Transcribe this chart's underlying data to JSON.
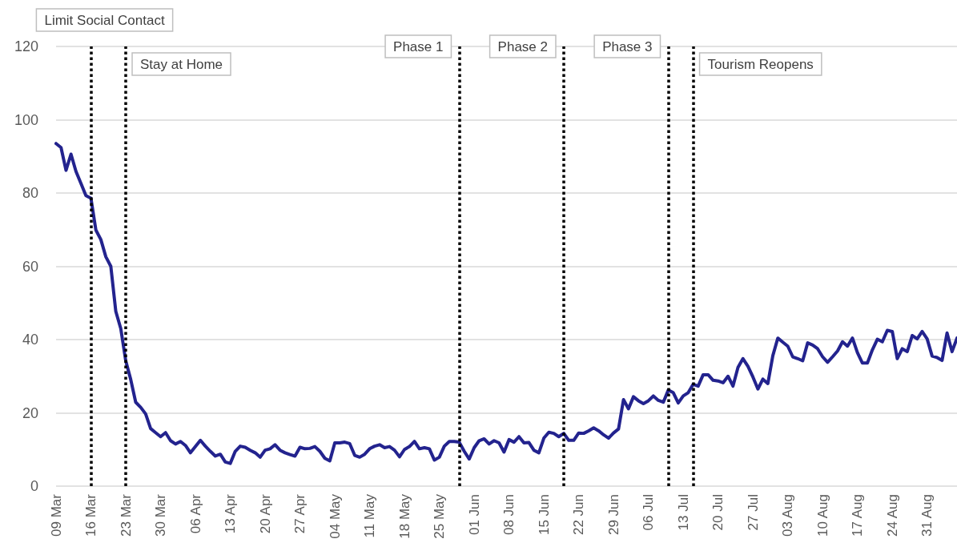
{
  "chart_data": {
    "type": "line",
    "x": [
      "--03-09",
      "--03-10",
      "--03-11",
      "--03-12",
      "--03-13",
      "--03-14",
      "--03-15",
      "--03-16",
      "--03-17",
      "--03-18",
      "--03-19",
      "--03-20",
      "--03-21",
      "--03-22",
      "--03-23",
      "--03-24",
      "--03-25",
      "--03-26",
      "--03-27",
      "--03-28",
      "--03-29",
      "--03-30",
      "--03-31",
      "--04-01",
      "--04-02",
      "--04-03",
      "--04-04",
      "--04-05",
      "--04-06",
      "--04-07",
      "--04-08",
      "--04-09",
      "--04-10",
      "--04-11",
      "--04-12",
      "--04-13",
      "--04-14",
      "--04-15",
      "--04-16",
      "--04-17",
      "--04-18",
      "--04-19",
      "--04-20",
      "--04-21",
      "--04-22",
      "--04-23",
      "--04-24",
      "--04-25",
      "--04-26",
      "--04-27",
      "--04-28",
      "--04-29",
      "--04-30",
      "--05-01",
      "--05-02",
      "--05-03",
      "--05-04",
      "--05-05",
      "--05-06",
      "--05-07",
      "--05-08",
      "--05-09",
      "--05-10",
      "--05-11",
      "--05-12",
      "--05-13",
      "--05-14",
      "--05-15",
      "--05-16",
      "--05-17",
      "--05-18",
      "--05-19",
      "--05-20",
      "--05-21",
      "--05-22",
      "--05-23",
      "--05-24",
      "--05-25",
      "--05-26",
      "--05-27",
      "--05-28",
      "--05-29",
      "--05-30",
      "--05-31",
      "--06-01",
      "--06-02",
      "--06-03",
      "--06-04",
      "--06-05",
      "--06-06",
      "--06-07",
      "--06-08",
      "--06-09",
      "--06-10",
      "--06-11",
      "--06-12",
      "--06-13",
      "--06-14",
      "--06-15",
      "--06-16",
      "--06-17",
      "--06-18",
      "--06-19",
      "--06-20",
      "--06-21",
      "--06-22",
      "--06-23",
      "--06-24",
      "--06-25",
      "--06-26",
      "--06-27",
      "--06-28",
      "--06-29",
      "--06-30",
      "--07-01",
      "--07-02",
      "--07-03",
      "--07-04",
      "--07-05",
      "--07-06",
      "--07-07",
      "--07-08",
      "--07-09",
      "--07-10",
      "--07-11",
      "--07-12",
      "--07-13",
      "--07-14",
      "--07-15",
      "--07-16",
      "--07-17",
      "--07-18",
      "--07-19",
      "--07-20",
      "--07-21",
      "--07-22",
      "--07-23",
      "--07-24",
      "--07-25",
      "--07-26",
      "--07-27",
      "--07-28",
      "--07-29",
      "--07-30",
      "--07-31",
      "--08-01",
      "--08-02",
      "--08-03",
      "--08-04",
      "--08-05",
      "--08-06",
      "--08-07",
      "--08-08",
      "--08-09",
      "--08-10",
      "--08-11",
      "--08-12",
      "--08-13",
      "--08-14",
      "--08-15",
      "--08-16",
      "--08-17",
      "--08-18",
      "--08-19",
      "--08-20",
      "--08-21",
      "--08-22",
      "--08-23",
      "--08-24",
      "--08-25",
      "--08-26",
      "--08-27",
      "--08-28",
      "--08-29",
      "--08-30",
      "--08-31",
      "--09-01",
      "--09-02",
      "--09-03",
      "--09-04",
      "--09-05",
      "--09-06"
    ],
    "series": [
      {
        "color": "#23238e",
        "values": [
          93.5,
          92.4,
          86.2,
          90.6,
          85.9,
          82.6,
          79.3,
          78.6,
          69.9,
          67.3,
          62.6,
          60,
          47.7,
          43,
          34.2,
          29.1,
          22.9,
          21.5,
          19.7,
          15.7,
          14.6,
          13.5,
          14.6,
          12.4,
          11.5,
          12.2,
          11.1,
          9.1,
          10.8,
          12.5,
          10.9,
          9.5,
          8.2,
          8.7,
          6.6,
          6.2,
          9.5,
          10.9,
          10.6,
          9.8,
          9.1,
          7.9,
          9.8,
          10.2,
          11.3,
          9.8,
          9.1,
          8.6,
          8.2,
          10.6,
          10.2,
          10.3,
          10.8,
          9.5,
          7.6,
          6.9,
          11.8,
          11.8,
          12,
          11.6,
          8.4,
          7.9,
          8.7,
          10.2,
          10.9,
          11.3,
          10.5,
          10.8,
          9.8,
          8,
          10,
          10.8,
          12.2,
          10.2,
          10.5,
          10.2,
          7.1,
          7.9,
          10.9,
          12.2,
          12.2,
          12,
          9.5,
          7.4,
          10.5,
          12.4,
          12.9,
          11.5,
          12.4,
          11.8,
          9.3,
          12.7,
          12,
          13.5,
          11.8,
          11.9,
          9.8,
          9.1,
          13.1,
          14.7,
          14.4,
          13.5,
          14.4,
          12.5,
          12.5,
          14.5,
          14.4,
          15.1,
          15.9,
          15.1,
          14,
          13.1,
          14.5,
          15.6,
          23.6,
          21.1,
          24.4,
          23.3,
          22.5,
          23.3,
          24.6,
          23.4,
          22.9,
          26.2,
          25.5,
          22.7,
          24.6,
          25.5,
          27.8,
          27.3,
          30.4,
          30.4,
          28.9,
          28.7,
          28.2,
          30,
          27.3,
          32.4,
          34.8,
          32.7,
          29.8,
          26.5,
          29.2,
          28,
          35.6,
          40.4,
          39.3,
          38.2,
          35.3,
          34.8,
          34.2,
          39.1,
          38.5,
          37.5,
          35.3,
          33.8,
          35.3,
          36.9,
          39.4,
          38.2,
          40.4,
          36.4,
          33.6,
          33.6,
          37.2,
          40.1,
          39.4,
          42.5,
          42.2,
          34.8,
          37.5,
          36.7,
          41.1,
          40.2,
          42.2,
          40.2,
          35.5,
          35.1,
          34.3,
          41.8,
          36.7,
          40.4
        ]
      }
    ],
    "xlim": [
      "--03-09",
      "--09-06"
    ],
    "xticks": [
      {
        "value": "--03-09",
        "label": "09 Mar"
      },
      {
        "value": "--03-16",
        "label": "16 Mar"
      },
      {
        "value": "--03-23",
        "label": "23 Mar"
      },
      {
        "value": "--03-30",
        "label": "30 Mar"
      },
      {
        "value": "--04-06",
        "label": "06 Apr"
      },
      {
        "value": "--04-13",
        "label": "13 Apr"
      },
      {
        "value": "--04-20",
        "label": "20 Apr"
      },
      {
        "value": "--04-27",
        "label": "27 Apr"
      },
      {
        "value": "--05-04",
        "label": "04 May"
      },
      {
        "value": "--05-11",
        "label": "11 May"
      },
      {
        "value": "--05-18",
        "label": "18 May"
      },
      {
        "value": "--05-25",
        "label": "25 May"
      },
      {
        "value": "--06-01",
        "label": "01 Jun"
      },
      {
        "value": "--06-08",
        "label": "08 Jun"
      },
      {
        "value": "--06-15",
        "label": "15 Jun"
      },
      {
        "value": "--06-22",
        "label": "22 Jun"
      },
      {
        "value": "--06-29",
        "label": "29 Jun"
      },
      {
        "value": "--07-06",
        "label": "06 Jul"
      },
      {
        "value": "--07-13",
        "label": "13 Jul"
      },
      {
        "value": "--07-20",
        "label": "20 Jul"
      },
      {
        "value": "--07-27",
        "label": "27 Jul"
      },
      {
        "value": "--08-03",
        "label": "03 Aug"
      },
      {
        "value": "--08-10",
        "label": "10 Aug"
      },
      {
        "value": "--08-17",
        "label": "17 Aug"
      },
      {
        "value": "--08-24",
        "label": "24 Aug"
      },
      {
        "value": "--08-31",
        "label": "31 Aug"
      }
    ],
    "ylim": [
      0,
      120
    ],
    "yticks": [
      0,
      20,
      40,
      60,
      80,
      100,
      120
    ],
    "ref_lines": [
      {
        "axis": "x",
        "value": "--03-16",
        "label": "Limit Social Contact",
        "line_style": "dotted",
        "color": "#000000"
      },
      {
        "axis": "x",
        "value": "--03-23",
        "label": "Stay at Home",
        "line_style": "dotted",
        "color": "#000000"
      },
      {
        "axis": "x",
        "value": "--05-29",
        "label": "Phase 1",
        "line_style": "dotted",
        "color": "#000000"
      },
      {
        "axis": "x",
        "value": "--06-19",
        "label": "Phase 2",
        "line_style": "dotted",
        "color": "#000000"
      },
      {
        "axis": "x",
        "value": "--07-10",
        "label": "Phase 3",
        "line_style": "dotted",
        "color": "#000000"
      },
      {
        "axis": "x",
        "value": "--07-15",
        "label": "Tourism Reopens",
        "line_style": "dotted",
        "color": "#000000"
      }
    ],
    "grid": "y",
    "marker": "none",
    "line_style": "solid"
  }
}
